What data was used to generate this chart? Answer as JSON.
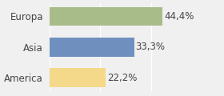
{
  "categories": [
    "America",
    "Asia",
    "Europa"
  ],
  "values": [
    22.2,
    33.3,
    44.4
  ],
  "labels": [
    "22,2%",
    "33,3%",
    "44,4%"
  ],
  "bar_colors": [
    "#f5d98b",
    "#6f8fbf",
    "#a8bc8a"
  ],
  "background_color": "#f0f0f0",
  "xlim": [
    0,
    58
  ],
  "bar_height": 0.62,
  "label_fontsize": 8.5,
  "tick_fontsize": 8.5
}
